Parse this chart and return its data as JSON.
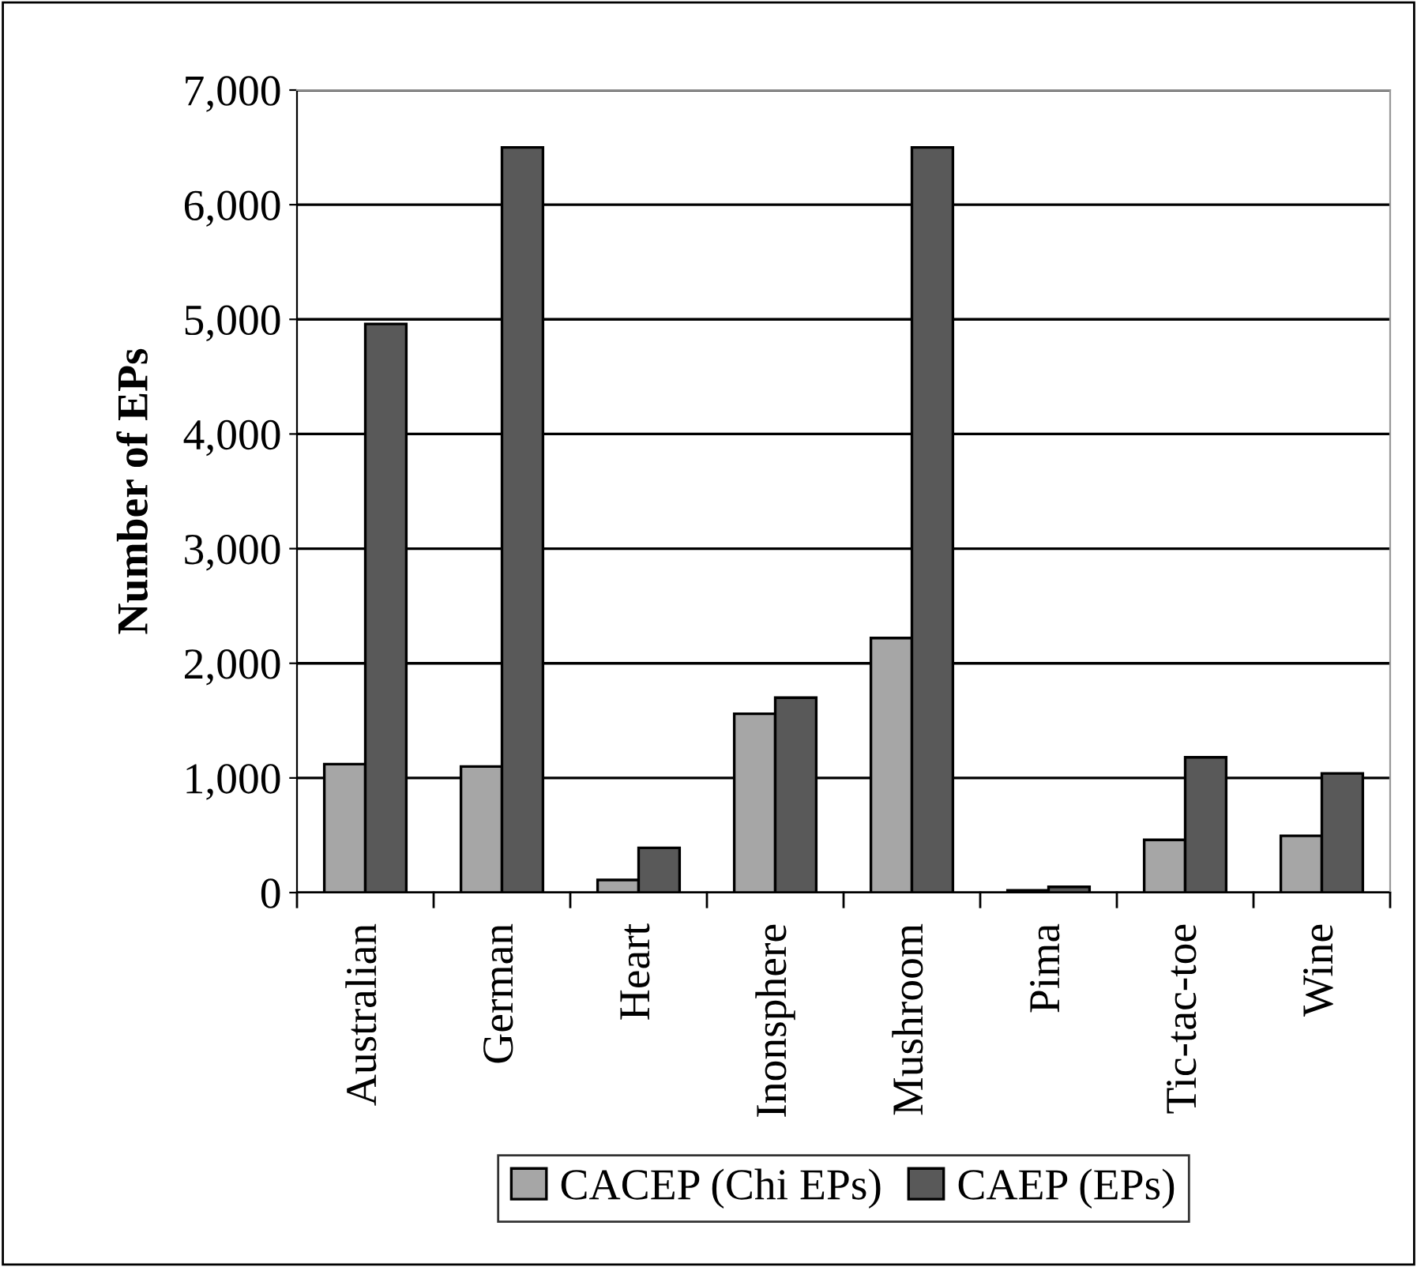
{
  "chart_data": {
    "type": "bar",
    "ylabel": "Number of EPs",
    "categories": [
      "Australian",
      "German",
      "Heart",
      "Inonsphere",
      "Mushroom",
      "Pima",
      "Tic-tac-toe",
      "Wine"
    ],
    "series": [
      {
        "name": "CACEP (Chi EPs)",
        "color": "#a6a6a6",
        "values": [
          1120,
          1100,
          110,
          1560,
          2220,
          20,
          460,
          495
        ]
      },
      {
        "name": "CAEP (EPs)",
        "color": "#595959",
        "values": [
          4960,
          6500,
          390,
          1700,
          6500,
          50,
          1180,
          1040
        ]
      }
    ],
    "ylim": [
      0,
      7000
    ],
    "yticks": [
      {
        "value": 0,
        "label": "0"
      },
      {
        "value": 1000,
        "label": "1,000"
      },
      {
        "value": 2000,
        "label": "2,000"
      },
      {
        "value": 3000,
        "label": "3,000"
      },
      {
        "value": 4000,
        "label": "4,000"
      },
      {
        "value": 5000,
        "label": "5,000"
      },
      {
        "value": 6000,
        "label": "6,000"
      },
      {
        "value": 7000,
        "label": "7,000"
      }
    ],
    "grid": "y",
    "legend": "bottom"
  }
}
